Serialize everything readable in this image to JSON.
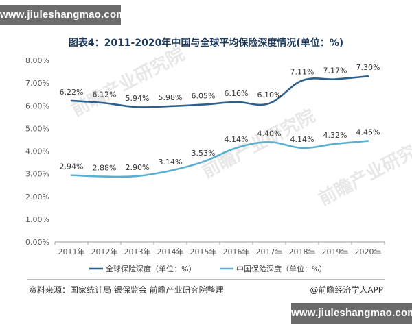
{
  "site": {
    "url_top": "www.jiuleshangmao.com",
    "url_bottom": "www.jiuleshangmao.com"
  },
  "footer": {
    "source": "资料来源：国家统计局 银保监会 前瞻产业研究院整理",
    "brand": "@前瞻经济学人APP"
  },
  "watermark": {
    "text": "前瞻产业研究院"
  },
  "chart_data": {
    "type": "line",
    "title": "图表4：2011-2020年中国与全球平均保险深度情况(单位：%)",
    "xlabel": "",
    "ylabel": "",
    "categories": [
      "2011年",
      "2012年",
      "2013年",
      "2014年",
      "2015年",
      "2016年",
      "2017年",
      "2018年",
      "2019年",
      "2020年"
    ],
    "yticks": [
      "0.00%",
      "1.00%",
      "2.00%",
      "3.00%",
      "4.00%",
      "5.00%",
      "6.00%",
      "7.00%",
      "8.00%"
    ],
    "ylim": [
      0,
      8
    ],
    "grid": false,
    "legend": "bottom",
    "series": [
      {
        "name": "全球保险深度（单位：%）",
        "color": "#2e5f8a",
        "values": [
          6.22,
          6.12,
          5.94,
          5.98,
          6.05,
          6.16,
          6.1,
          7.11,
          7.17,
          7.3
        ],
        "labels": [
          "6.22%",
          "6.12%",
          "5.94%",
          "5.98%",
          "6.05%",
          "6.16%",
          "6.10%",
          "7.11%",
          "7.17%",
          "7.30%"
        ]
      },
      {
        "name": "中国保险深度（单位：%）",
        "color": "#5aaed0",
        "values": [
          2.94,
          2.88,
          2.9,
          3.14,
          3.53,
          4.14,
          4.4,
          4.14,
          4.32,
          4.45
        ],
        "labels": [
          "2.94%",
          "2.88%",
          "2.90%",
          "3.14%",
          "3.53%",
          "4.14%",
          "4.40%",
          "4.14%",
          "4.32%",
          "4.45%"
        ]
      }
    ]
  }
}
